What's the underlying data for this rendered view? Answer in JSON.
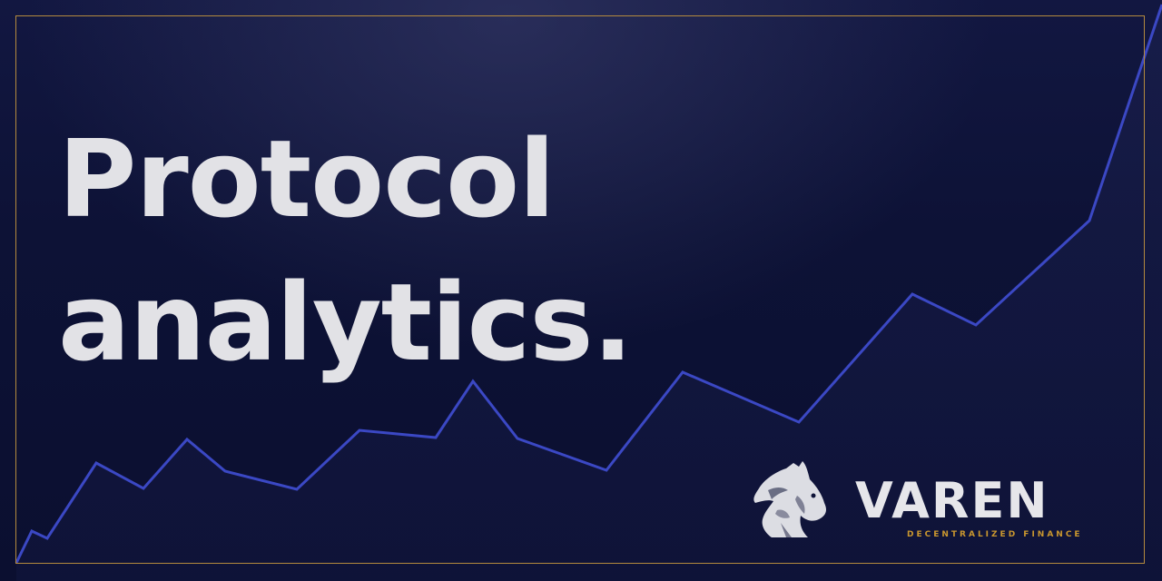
{
  "headline": {
    "line1": "Protocol",
    "line2": "analytics."
  },
  "brand": {
    "name": "VAREN",
    "tagline": "DECENTRALIZED FINANCE"
  },
  "icons": {
    "logo": "horse-head-icon"
  },
  "colors": {
    "background": "#0b0f30",
    "line": "#3b48c4",
    "frame": "#b48a3e",
    "text": "#e2e2e6",
    "accent": "#c9972f"
  }
}
